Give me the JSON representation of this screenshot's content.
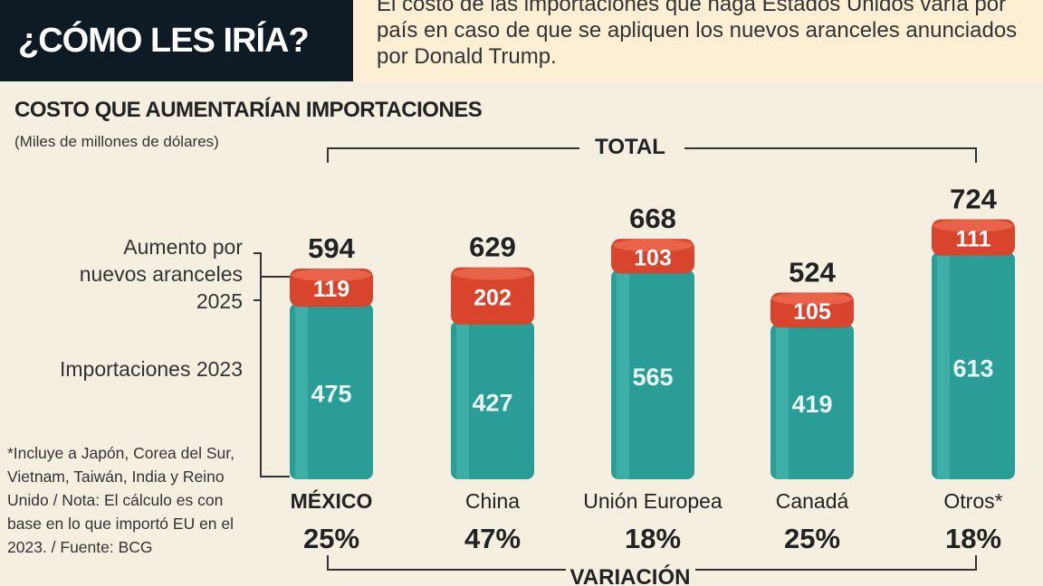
{
  "header": {
    "title": "¿CÓMO LES IRÍA?",
    "intro": "El costo de las importaciones que haga Estados Unidos varía por país en caso de que se apliquen los nuevos aranceles anunciados por Donald Trump."
  },
  "chart_data": {
    "type": "bar",
    "title": "COSTO QUE AUMENTARÍAN IMPORTACIONES",
    "subtitle": "(Miles de millones de dólares)",
    "stacked": true,
    "categories": [
      "MÉXICO",
      "China",
      "Unión Europea",
      "Canadá",
      "Otros*"
    ],
    "series": [
      {
        "name": "Importaciones 2023",
        "values": [
          475,
          427,
          565,
          419,
          613
        ],
        "color": "#2a9d96"
      },
      {
        "name": "Aumento por nuevos aranceles 2025",
        "values": [
          119,
          202,
          103,
          105,
          111
        ],
        "color": "#d9442c"
      }
    ],
    "totals": [
      594,
      629,
      668,
      524,
      724
    ],
    "total_label": "TOTAL",
    "variation_label": "VARIACIÓN",
    "variation": [
      "25%",
      "47%",
      "18%",
      "25%",
      "18%"
    ]
  },
  "legend": {
    "increase": "Aumento por nuevos aranceles 2025",
    "imports": "Importaciones 2023"
  },
  "footnote": "*Incluye a Japón, Corea del Sur, Vietnam, Taiwán, India y Reino Unido / Nota: El cálculo es con base en lo que importó EU en el 2023. / Fuente: BCG"
}
